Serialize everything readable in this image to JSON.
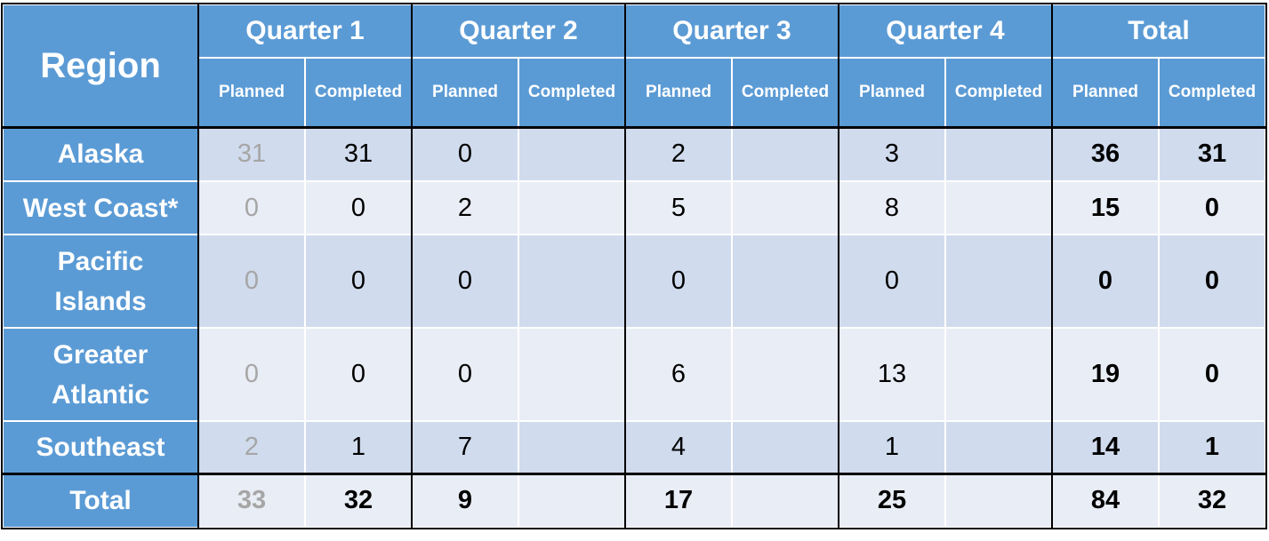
{
  "header": {
    "region": "Region",
    "groups": [
      {
        "title": "Quarter 1",
        "columns": [
          "Planned",
          "Completed"
        ]
      },
      {
        "title": "Quarter 2",
        "columns": [
          "Planned",
          "Completed"
        ]
      },
      {
        "title": "Quarter 3",
        "columns": [
          "Planned",
          "Completed"
        ]
      },
      {
        "title": "Quarter 4",
        "columns": [
          "Planned",
          "Completed"
        ]
      },
      {
        "title": "Total",
        "columns": [
          "Planned",
          "Completed"
        ]
      }
    ]
  },
  "rows": [
    {
      "region": "Alaska",
      "cells": [
        31,
        31,
        0,
        null,
        2,
        null,
        3,
        null,
        36,
        31
      ]
    },
    {
      "region": "West Coast*",
      "cells": [
        0,
        0,
        2,
        null,
        5,
        null,
        8,
        null,
        15,
        0
      ]
    },
    {
      "region": "Pacific Islands",
      "cells": [
        0,
        0,
        0,
        null,
        0,
        null,
        0,
        null,
        0,
        0
      ]
    },
    {
      "region": "Greater Atlantic",
      "cells": [
        0,
        0,
        0,
        null,
        6,
        null,
        13,
        null,
        19,
        0
      ]
    },
    {
      "region": "Southeast",
      "cells": [
        2,
        1,
        7,
        null,
        4,
        null,
        1,
        null,
        14,
        1
      ]
    }
  ],
  "total": {
    "region": "Total",
    "cells": [
      33,
      32,
      9,
      null,
      17,
      null,
      25,
      null,
      84,
      32
    ]
  }
}
